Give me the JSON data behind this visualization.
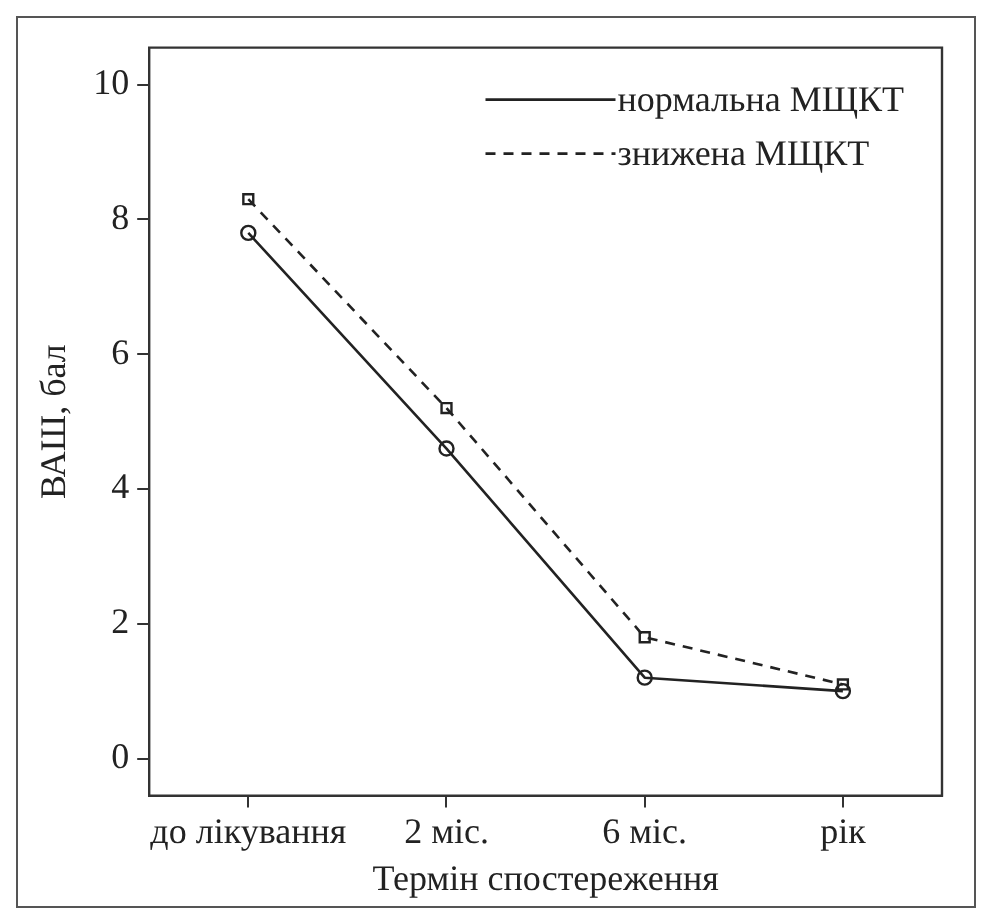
{
  "chart_data": {
    "type": "line",
    "xlabel": "Термін спостереження",
    "ylabel": "ВАШ, бал",
    "categories": [
      "до лікування",
      "2 міс.",
      "6 міс.",
      "рік"
    ],
    "series": [
      {
        "name": "нормальна МЩКТ",
        "color": "#222222",
        "values": [
          7.8,
          4.6,
          1.2,
          1.0
        ],
        "marker": "circle",
        "line_style": "solid"
      },
      {
        "name": "знижена МЩКТ",
        "color": "#222222",
        "values": [
          8.3,
          5.2,
          1.8,
          1.1
        ],
        "marker": "square",
        "line_style": "dashed"
      }
    ],
    "ylim": [
      -0.55,
      10.55
    ],
    "yticks": [
      0,
      2,
      4,
      6,
      8,
      10
    ],
    "grid": false,
    "legend": "top right"
  }
}
